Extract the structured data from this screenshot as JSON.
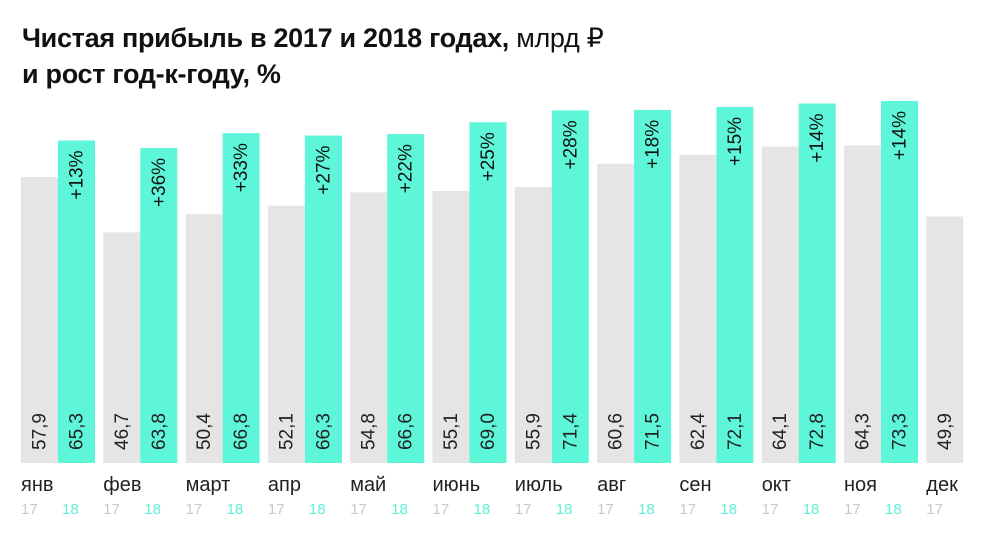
{
  "title": {
    "line1_bold": "Чистая прибыль в 2017 и 2018 годах,",
    "line1_unit": " млрд ₽",
    "line2_bold": "и рост год-к-году, %"
  },
  "colors": {
    "bar_2017": "#e5e5e5",
    "bar_2018": "#5ef6d8",
    "year_label_2017": "#c9c9c9",
    "year_label_2018": "#5ef0d6"
  },
  "chart_data": {
    "type": "bar",
    "title": "Чистая прибыль в 2017 и 2018 годах, млрд ₽ и рост год-к-году, %",
    "categories": [
      "янв",
      "фев",
      "март",
      "апр",
      "май",
      "июнь",
      "июль",
      "авг",
      "сен",
      "окт",
      "ноя",
      "дек"
    ],
    "series": [
      {
        "name": "17",
        "values": [
          57.9,
          46.7,
          50.4,
          52.1,
          54.8,
          55.1,
          55.9,
          60.6,
          62.4,
          64.1,
          64.3,
          49.9
        ],
        "labels": [
          "57,9",
          "46,7",
          "50,4",
          "52,1",
          "54,8",
          "55,1",
          "55,9",
          "60,6",
          "62,4",
          "64,1",
          "64,3",
          "49,9"
        ]
      },
      {
        "name": "18",
        "values": [
          65.3,
          63.8,
          66.8,
          66.3,
          66.6,
          69.0,
          71.4,
          71.5,
          72.1,
          72.8,
          73.3,
          null
        ],
        "labels": [
          "65,3",
          "63,8",
          "66,8",
          "66,3",
          "66,6",
          "69,0",
          "71,4",
          "71,5",
          "72,1",
          "72,8",
          "73,3",
          null
        ]
      }
    ],
    "growth_labels": [
      "+13%",
      "+36%",
      "+33%",
      "+27%",
      "+22%",
      "+25%",
      "+28%",
      "+18%",
      "+15%",
      "+14%",
      "+14%",
      null
    ],
    "ylim": [
      0,
      75
    ],
    "grid": false,
    "legend": "none",
    "xlabel": "",
    "ylabel": ""
  }
}
